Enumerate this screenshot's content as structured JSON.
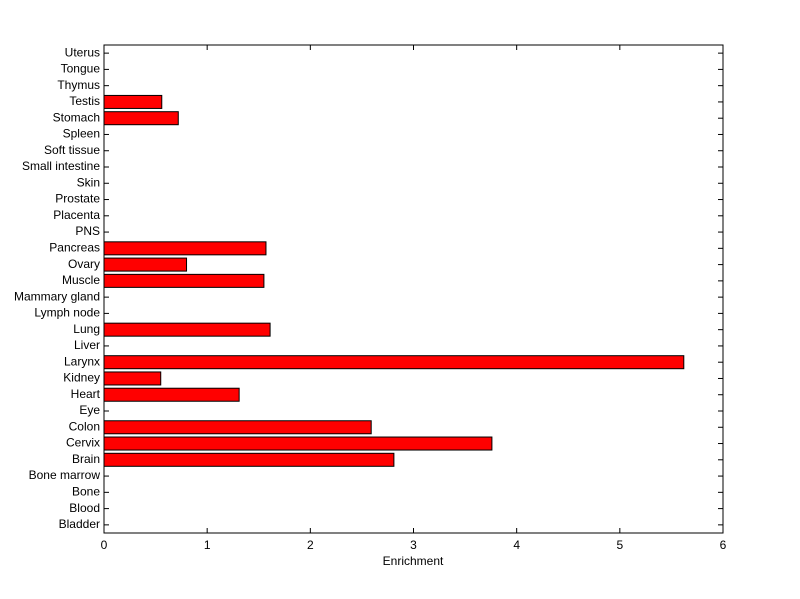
{
  "chart_data": {
    "type": "barh",
    "x_label": "Enrichment",
    "categories": [
      "Bladder",
      "Blood",
      "Bone",
      "Bone marrow",
      "Brain",
      "Cervix",
      "Colon",
      "Eye",
      "Heart",
      "Kidney",
      "Larynx",
      "Liver",
      "Lung",
      "Lymph node",
      "Mammary gland",
      "Muscle",
      "Ovary",
      "Pancreas",
      "PNS",
      "Placenta",
      "Prostate",
      "Skin",
      "Small intestine",
      "Soft tissue",
      "Spleen",
      "Stomach",
      "Testis",
      "Thymus",
      "Tongue",
      "Uterus"
    ],
    "values": [
      0,
      0,
      0,
      0,
      2.81,
      3.76,
      2.59,
      0,
      1.31,
      0.55,
      5.62,
      0,
      1.61,
      0,
      0,
      1.55,
      0.8,
      1.57,
      0,
      0,
      0,
      0,
      0,
      0,
      0,
      0.72,
      0.56,
      0,
      0,
      0
    ],
    "color": "#ff0000",
    "xlim": [
      0,
      6
    ],
    "xticks": [
      0,
      1,
      2,
      3,
      4,
      5,
      6
    ]
  }
}
